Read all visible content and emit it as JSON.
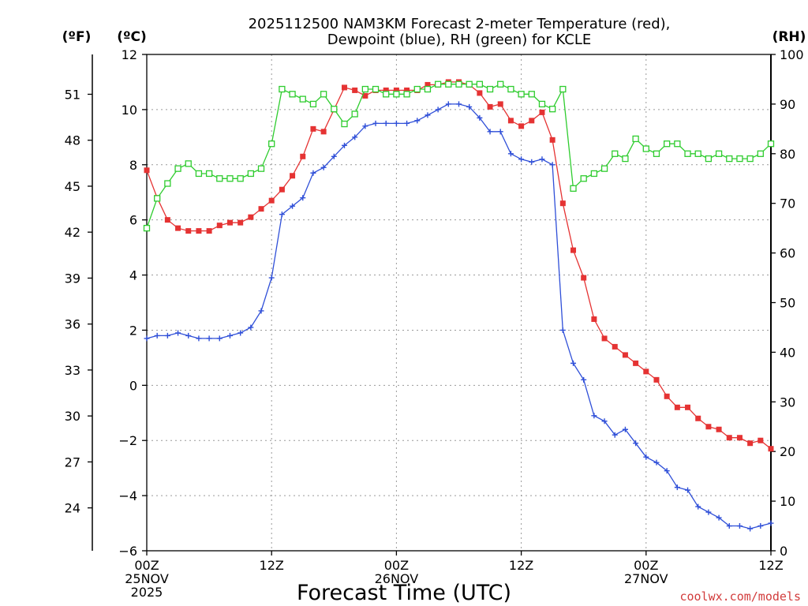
{
  "chart_data": {
    "type": "line",
    "title_line1": "2025112500 NAM3KM Forecast 2-meter Temperature (red),",
    "title_line2": "Dewpoint (blue), RH (green) for KCLE",
    "xlabel": "Forecast Time (UTC)",
    "credit": "coolwx.com/models",
    "units": {
      "fahrenheit": "(ºF)",
      "celsius": "(ºC)",
      "rh": "(RH)"
    },
    "x_range": [
      0,
      60
    ],
    "y_left_range": [
      -6,
      12
    ],
    "y_right_range": [
      0,
      100
    ],
    "x_ticks": [
      {
        "x": 0,
        "lines": [
          "00Z",
          "25NOV",
          "2025"
        ]
      },
      {
        "x": 12,
        "lines": [
          "12Z"
        ]
      },
      {
        "x": 24,
        "lines": [
          "00Z",
          "26NOV"
        ]
      },
      {
        "x": 36,
        "lines": [
          "12Z"
        ]
      },
      {
        "x": 48,
        "lines": [
          "00Z",
          "27NOV"
        ]
      },
      {
        "x": 60,
        "lines": [
          "12Z"
        ]
      }
    ],
    "y_left_ticks": [
      -6,
      -4,
      -2,
      0,
      2,
      4,
      6,
      8,
      10,
      12
    ],
    "y_left_tick_labels": [
      "−6",
      "−4",
      "−2",
      "0",
      "2",
      "4",
      "6",
      "8",
      "10",
      "12"
    ],
    "y_right_ticks": [
      0,
      10,
      20,
      30,
      40,
      50,
      60,
      70,
      80,
      90,
      100
    ],
    "y_fahrenheit_ticks": [
      24,
      27,
      30,
      33,
      36,
      39,
      42,
      45,
      48,
      51
    ],
    "x_hours": [
      0,
      1,
      2,
      3,
      4,
      5,
      6,
      7,
      8,
      9,
      10,
      11,
      12,
      13,
      14,
      15,
      16,
      17,
      18,
      19,
      20,
      21,
      22,
      23,
      24,
      25,
      26,
      27,
      28,
      29,
      30,
      31,
      32,
      33,
      34,
      35,
      36,
      37,
      38,
      39,
      40,
      41,
      42,
      43,
      44,
      45,
      46,
      47,
      48,
      49,
      50,
      51,
      52,
      53,
      54,
      55,
      56,
      57,
      58,
      59,
      60
    ],
    "series": [
      {
        "name": "2-meter Temperature (°C)",
        "color": "#e53333",
        "marker": "filled-square",
        "axis": "left",
        "values": [
          7.8,
          6.8,
          6.0,
          5.7,
          5.6,
          5.6,
          5.6,
          5.8,
          5.9,
          5.9,
          6.1,
          6.4,
          6.7,
          7.1,
          7.6,
          8.3,
          9.3,
          9.2,
          10.0,
          10.8,
          10.7,
          10.5,
          10.7,
          10.7,
          10.7,
          10.7,
          10.7,
          10.9,
          10.9,
          11.0,
          11.0,
          10.9,
          10.6,
          10.1,
          10.2,
          9.6,
          9.4,
          9.6,
          9.9,
          8.9,
          6.6,
          4.9,
          3.9,
          2.4,
          1.7,
          1.4,
          1.1,
          0.8,
          0.5,
          0.2,
          -0.4,
          -0.8,
          -0.8,
          -1.2,
          -1.5,
          -1.6,
          -1.9,
          -1.9,
          -2.1,
          -2.0,
          -2.3
        ]
      },
      {
        "name": "Dewpoint (°C)",
        "color": "#2f4fd8",
        "marker": "plus",
        "axis": "left",
        "values": [
          1.7,
          1.8,
          1.8,
          1.9,
          1.8,
          1.7,
          1.7,
          1.7,
          1.8,
          1.9,
          2.1,
          2.7,
          3.9,
          6.2,
          6.5,
          6.8,
          7.7,
          7.9,
          8.3,
          8.7,
          9.0,
          9.4,
          9.5,
          9.5,
          9.5,
          9.5,
          9.6,
          9.8,
          10.0,
          10.2,
          10.2,
          10.1,
          9.7,
          9.2,
          9.2,
          8.4,
          8.2,
          8.1,
          8.2,
          8.0,
          2.0,
          0.8,
          0.2,
          -1.1,
          -1.3,
          -1.8,
          -1.6,
          -2.1,
          -2.6,
          -2.8,
          -3.1,
          -3.7,
          -3.8,
          -4.4,
          -4.6,
          -4.8,
          -5.1,
          -5.1,
          -5.2,
          -5.1,
          -5.0
        ]
      },
      {
        "name": "RH (%)",
        "color": "#2ecc2e",
        "marker": "open-square",
        "axis": "right",
        "values": [
          65,
          71,
          74,
          77,
          78,
          76,
          76,
          75,
          75,
          75,
          76,
          77,
          82,
          93,
          92,
          91,
          90,
          92,
          89,
          86,
          88,
          93,
          93,
          92,
          92,
          92,
          93,
          93,
          94,
          94,
          94,
          94,
          94,
          93,
          94,
          93,
          92,
          92,
          90,
          89,
          93,
          73,
          75,
          76,
          77,
          80,
          79,
          83,
          81,
          80,
          82,
          82,
          80,
          80,
          79,
          80,
          79,
          79,
          79,
          80,
          82
        ]
      }
    ]
  }
}
